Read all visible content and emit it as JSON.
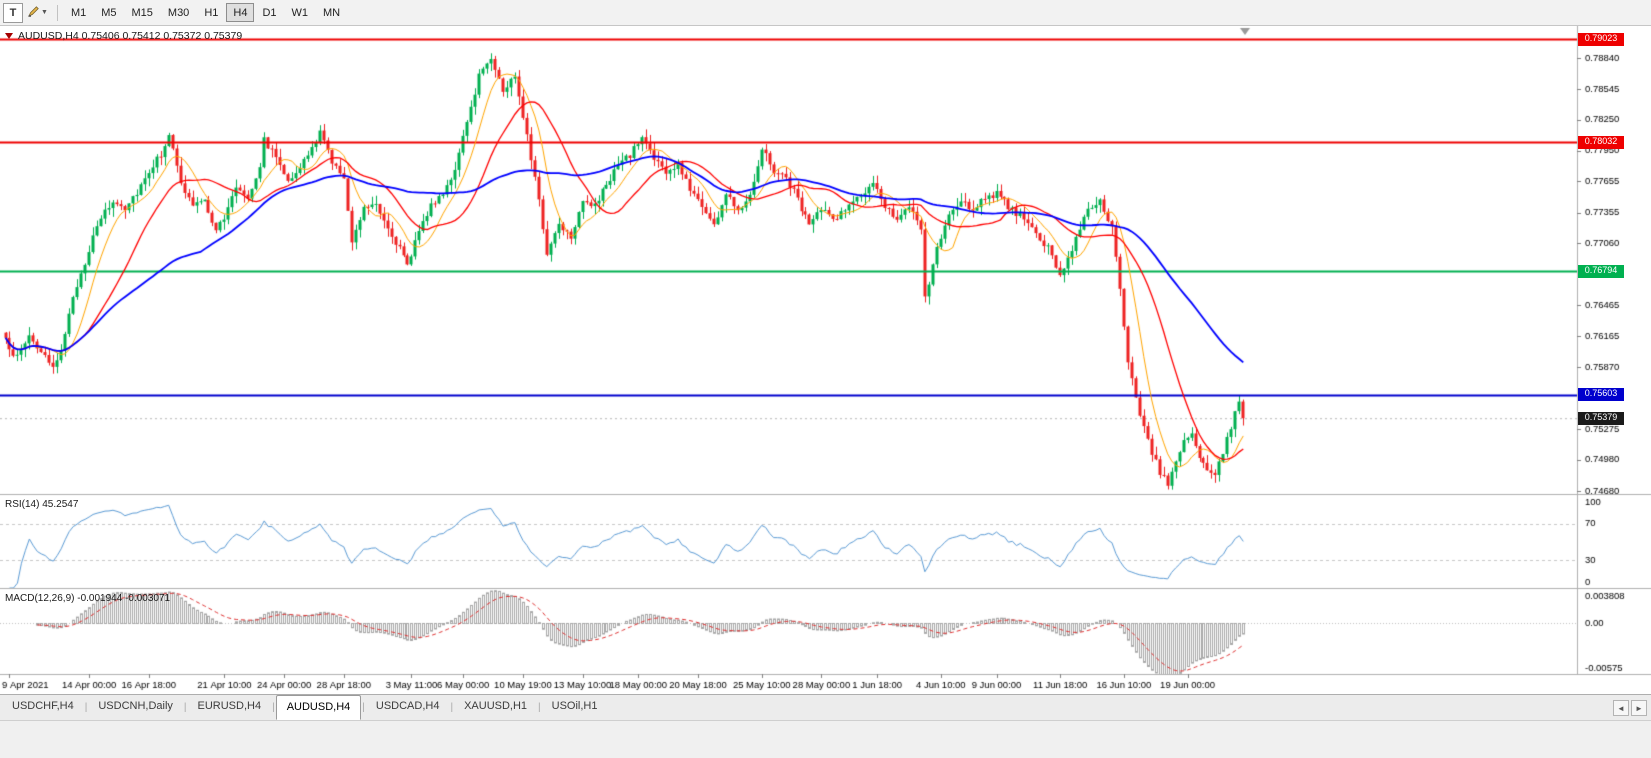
{
  "toolbar": {
    "text_tool_label": "T",
    "timeframes": [
      {
        "label": "M1"
      },
      {
        "label": "M5"
      },
      {
        "label": "M15"
      },
      {
        "label": "M30"
      },
      {
        "label": "H1"
      },
      {
        "label": "H4",
        "active": true
      },
      {
        "label": "D1"
      },
      {
        "label": "W1"
      },
      {
        "label": "MN"
      }
    ]
  },
  "chart": {
    "title": "AUDUSD,H4 0.75406 0.75412 0.75372 0.75379",
    "symbol": "AUDUSD,H4"
  },
  "price_axis": {
    "ticks": [
      "0.78840",
      "0.78545",
      "0.78250",
      "0.77950",
      "0.77655",
      "0.77355",
      "0.77060",
      "0.76465",
      "0.76165",
      "0.75870",
      "0.75275",
      "0.74980",
      "0.74680"
    ]
  },
  "hlines": [
    {
      "value": "0.79023",
      "price": 0.79023,
      "color": "#ee0000"
    },
    {
      "value": "0.78032",
      "price": 0.78032,
      "color": "#ee0000"
    },
    {
      "value": "0.76794",
      "price": 0.76794,
      "color": "#00b050"
    },
    {
      "value": "0.75603",
      "price": 0.75603,
      "color": "#0000cd"
    }
  ],
  "current_price": {
    "value": "0.75379",
    "price": 0.75379,
    "bg": "#1a1a1a"
  },
  "indicators": {
    "rsi": {
      "label": "RSI(14) 45.2547",
      "levels": [
        "100",
        "70",
        "30",
        "0"
      ]
    },
    "macd": {
      "label": "MACD(12,26,9) -0.001944 -0.003071",
      "scale_top": "0.003808",
      "scale_zero": "0.00",
      "scale_bottom": "-0.00575"
    }
  },
  "time_axis": {
    "labels": [
      {
        "i": 1,
        "label": "9 Apr 2021"
      },
      {
        "i": 21,
        "label": "14 Apr 00:00"
      },
      {
        "i": 36,
        "label": "16 Apr 18:00"
      },
      {
        "i": 55,
        "label": "21 Apr 10:00"
      },
      {
        "i": 70,
        "label": "24 Apr 00:00"
      },
      {
        "i": 85,
        "label": "28 Apr 18:00"
      },
      {
        "i": 102,
        "label": "3 May 11:00"
      },
      {
        "i": 115,
        "label": "6 May 00:00"
      },
      {
        "i": 130,
        "label": "10 May 19:00"
      },
      {
        "i": 145,
        "label": "13 May 10:00"
      },
      {
        "i": 159,
        "label": "18 May 00:00"
      },
      {
        "i": 174,
        "label": "20 May 18:00"
      },
      {
        "i": 190,
        "label": "25 May 10:00"
      },
      {
        "i": 205,
        "label": "28 May 00:00"
      },
      {
        "i": 219,
        "label": "1 Jun 18:00"
      },
      {
        "i": 235,
        "label": "4 Jun 10:00"
      },
      {
        "i": 249,
        "label": "9 Jun 00:00"
      },
      {
        "i": 265,
        "label": "11 Jun 18:00"
      },
      {
        "i": 281,
        "label": "16 Jun 10:00"
      },
      {
        "i": 297,
        "label": "19 Jun 00:00"
      }
    ]
  },
  "tabs": {
    "items": [
      {
        "label": "USDCHF,H4"
      },
      {
        "label": "USDCNH,Daily"
      },
      {
        "label": "EURUSD,H4"
      },
      {
        "label": "AUDUSD,H4",
        "active": true
      },
      {
        "label": "USDCAD,H4"
      },
      {
        "label": "XAUUSD,H1"
      },
      {
        "label": "USOil,H1"
      }
    ],
    "scroll_left": "◄",
    "scroll_right": "►"
  },
  "chart_data": {
    "type": "candlestick",
    "symbol": "AUDUSD",
    "timeframe": "H4",
    "ohlc_current": {
      "open": 0.75406,
      "high": 0.75412,
      "low": 0.75372,
      "close": 0.75379
    },
    "n_candles": 312,
    "price_axis_range": {
      "top": 0.7915,
      "bottom": 0.7465
    },
    "horizontal_levels": [
      0.79023,
      0.78032,
      0.76794,
      0.75603
    ],
    "colors": {
      "up": "#00b050",
      "down": "#ee2222",
      "bid_line": "#b8b8b8"
    },
    "moving_averages": [
      {
        "period": 8,
        "color": "#ffa500",
        "width": 1
      },
      {
        "period": 20,
        "color": "#ff0000",
        "width": 1.3
      },
      {
        "period": 50,
        "color": "#0000ff",
        "width": 1.8
      }
    ],
    "rsi": {
      "period": 14,
      "current": 45.2547,
      "color": "#5b9bd5",
      "levels": [
        70,
        30
      ]
    },
    "macd": {
      "fast": 12,
      "slow": 26,
      "signal": 9,
      "current_macd": -0.001944,
      "current_signal": -0.003071,
      "scale_max": 0.003808,
      "scale_min": -0.00575,
      "histogram_color": "#a8a8a8",
      "signal_color": "#e03232"
    },
    "close_waypoints": [
      [
        0,
        0.7612
      ],
      [
        3,
        0.7596
      ],
      [
        6,
        0.7618
      ],
      [
        9,
        0.7601
      ],
      [
        12,
        0.7584
      ],
      [
        14,
        0.7606
      ],
      [
        16,
        0.7636
      ],
      [
        18,
        0.7666
      ],
      [
        21,
        0.77
      ],
      [
        24,
        0.7731
      ],
      [
        27,
        0.7746
      ],
      [
        30,
        0.7741
      ],
      [
        33,
        0.7756
      ],
      [
        36,
        0.7776
      ],
      [
        39,
        0.7792
      ],
      [
        41,
        0.7812
      ],
      [
        44,
        0.7762
      ],
      [
        47,
        0.7743
      ],
      [
        50,
        0.7746
      ],
      [
        53,
        0.772
      ],
      [
        55,
        0.7729
      ],
      [
        58,
        0.7761
      ],
      [
        61,
        0.7751
      ],
      [
        64,
        0.7781
      ],
      [
        65,
        0.7806
      ],
      [
        68,
        0.7789
      ],
      [
        71,
        0.7769
      ],
      [
        73,
        0.7772
      ],
      [
        76,
        0.7791
      ],
      [
        79,
        0.7812
      ],
      [
        82,
        0.7786
      ],
      [
        85,
        0.7766
      ],
      [
        87,
        0.771
      ],
      [
        90,
        0.7741
      ],
      [
        93,
        0.7746
      ],
      [
        96,
        0.7721
      ],
      [
        99,
        0.7701
      ],
      [
        101,
        0.7683
      ],
      [
        104,
        0.7721
      ],
      [
        107,
        0.7741
      ],
      [
        110,
        0.7756
      ],
      [
        113,
        0.7776
      ],
      [
        116,
        0.7821
      ],
      [
        119,
        0.7868
      ],
      [
        122,
        0.7886
      ],
      [
        125,
        0.7852
      ],
      [
        128,
        0.7868
      ],
      [
        131,
        0.7811
      ],
      [
        134,
        0.7746
      ],
      [
        136,
        0.7696
      ],
      [
        139,
        0.7726
      ],
      [
        142,
        0.7713
      ],
      [
        145,
        0.7749
      ],
      [
        148,
        0.7741
      ],
      [
        151,
        0.7763
      ],
      [
        154,
        0.7781
      ],
      [
        157,
        0.7791
      ],
      [
        160,
        0.7808
      ],
      [
        163,
        0.7789
      ],
      [
        166,
        0.7773
      ],
      [
        169,
        0.7781
      ],
      [
        172,
        0.7759
      ],
      [
        175,
        0.7743
      ],
      [
        178,
        0.7723
      ],
      [
        181,
        0.7753
      ],
      [
        184,
        0.7739
      ],
      [
        187,
        0.7753
      ],
      [
        190,
        0.7798
      ],
      [
        193,
        0.7776
      ],
      [
        196,
        0.7769
      ],
      [
        199,
        0.7749
      ],
      [
        202,
        0.7723
      ],
      [
        205,
        0.7739
      ],
      [
        208,
        0.7729
      ],
      [
        211,
        0.7739
      ],
      [
        214,
        0.7749
      ],
      [
        218,
        0.7761
      ],
      [
        221,
        0.7743
      ],
      [
        224,
        0.7731
      ],
      [
        227,
        0.7739
      ],
      [
        230,
        0.7721
      ],
      [
        231,
        0.7652
      ],
      [
        234,
        0.7701
      ],
      [
        237,
        0.7733
      ],
      [
        240,
        0.7745
      ],
      [
        243,
        0.7739
      ],
      [
        246,
        0.7751
      ],
      [
        249,
        0.7753
      ],
      [
        252,
        0.7741
      ],
      [
        255,
        0.7733
      ],
      [
        258,
        0.7719
      ],
      [
        262,
        0.7701
      ],
      [
        265,
        0.7676
      ],
      [
        268,
        0.7701
      ],
      [
        272,
        0.7741
      ],
      [
        275,
        0.7746
      ],
      [
        278,
        0.7719
      ],
      [
        280,
        0.7661
      ],
      [
        282,
        0.7591
      ],
      [
        284,
        0.7556
      ],
      [
        286,
        0.7531
      ],
      [
        288,
        0.7506
      ],
      [
        290,
        0.7486
      ],
      [
        292,
        0.7476
      ],
      [
        294,
        0.7496
      ],
      [
        296,
        0.7516
      ],
      [
        298,
        0.7521
      ],
      [
        300,
        0.7501
      ],
      [
        302,
        0.7489
      ],
      [
        304,
        0.7483
      ],
      [
        306,
        0.7506
      ],
      [
        308,
        0.7529
      ],
      [
        310,
        0.7556
      ],
      [
        311,
        0.75379
      ]
    ]
  }
}
